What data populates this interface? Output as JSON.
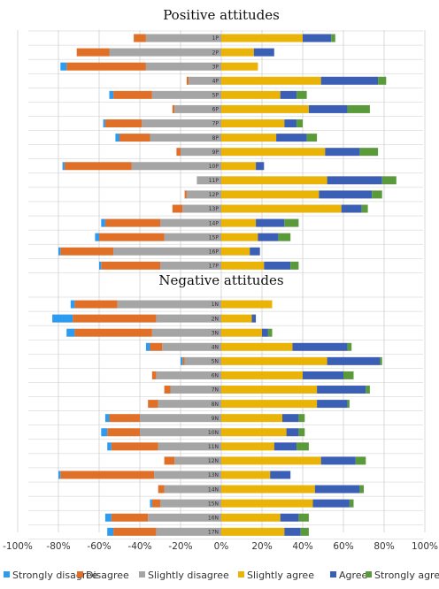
{
  "colors": {
    "strongly_disagree": "#2d9bf0",
    "disagree": "#e07028",
    "slightly_disagree": "#a5a5a5",
    "slightly_agree": "#eab308",
    "agree": "#3b5fb5",
    "strongly_agree": "#5a9a3a",
    "gridline": "#d9d9d9",
    "row_rule": "#cccccc"
  },
  "chart_data": [
    {
      "type": "bar",
      "title": "Positive attitudes",
      "orientation": "horizontal",
      "stacking": "diverging",
      "xlim": [
        -100,
        100
      ],
      "grid": true,
      "categories": [
        "1P",
        "2P",
        "3P",
        "4P",
        "5P",
        "6P",
        "7P",
        "8P",
        "9P",
        "10P",
        "11P",
        "12P",
        "13P",
        "14P",
        "15P",
        "16P",
        "17P"
      ],
      "series": [
        {
          "name": "Strongly disagree",
          "values": [
            0,
            0,
            -3,
            0,
            -2,
            0,
            -1,
            -2,
            0,
            -1,
            0,
            0,
            0,
            -2,
            -2,
            -1,
            -1
          ]
        },
        {
          "name": "Disagree",
          "values": [
            -6,
            -16,
            -39,
            -1,
            -19,
            -1,
            -18,
            -15,
            -2,
            -33,
            0,
            -1,
            -5,
            -27,
            -32,
            -26,
            -29
          ]
        },
        {
          "name": "Slightly disagree",
          "values": [
            -37,
            -55,
            -37,
            -16,
            -34,
            -23,
            -39,
            -35,
            -20,
            -44,
            -12,
            -17,
            -19,
            -30,
            -28,
            -53,
            -30
          ]
        },
        {
          "name": "Slightly agree",
          "values": [
            40,
            16,
            18,
            49,
            29,
            43,
            31,
            27,
            51,
            17,
            52,
            48,
            59,
            17,
            18,
            14,
            21
          ]
        },
        {
          "name": "Agree",
          "values": [
            14,
            10,
            0,
            28,
            8,
            19,
            6,
            15,
            17,
            4,
            27,
            26,
            10,
            14,
            10,
            5,
            13
          ]
        },
        {
          "name": "Strongly agree",
          "values": [
            2,
            0,
            0,
            4,
            5,
            11,
            3,
            5,
            9,
            0,
            7,
            5,
            3,
            7,
            6,
            0,
            4
          ]
        }
      ]
    },
    {
      "type": "bar",
      "title": "Negative attitudes",
      "orientation": "horizontal",
      "stacking": "diverging",
      "xlim": [
        -100,
        100
      ],
      "grid": true,
      "xticks": [
        "-100%",
        "-80%",
        "-60%",
        "-40%",
        "-20%",
        "0%",
        "20%",
        "40%",
        "60%",
        "80%",
        "100%"
      ],
      "categories": [
        "1N",
        "2N",
        "3N",
        "4N",
        "5N",
        "6N",
        "7N",
        "8N",
        "9N",
        "10N",
        "11N",
        "12N",
        "13N",
        "14N",
        "15N",
        "16N",
        "17N"
      ],
      "series": [
        {
          "name": "Strongly disagree",
          "values": [
            -2,
            -10,
            -4,
            -2,
            -1,
            0,
            0,
            0,
            -2,
            -3,
            -2,
            0,
            -1,
            0,
            -1,
            -3,
            -3
          ]
        },
        {
          "name": "Disagree",
          "values": [
            -21,
            -41,
            -38,
            -6,
            -1,
            -2,
            -3,
            -5,
            -15,
            -16,
            -23,
            -5,
            -46,
            -3,
            -4,
            -18,
            -21
          ]
        },
        {
          "name": "Slightly disagree",
          "values": [
            -51,
            -32,
            -34,
            -29,
            -18,
            -32,
            -25,
            -31,
            -40,
            -40,
            -31,
            -23,
            -33,
            -28,
            -30,
            -36,
            -32
          ]
        },
        {
          "name": "Slightly agree",
          "values": [
            25,
            15,
            20,
            35,
            52,
            40,
            47,
            47,
            30,
            32,
            26,
            49,
            24,
            46,
            45,
            29,
            31
          ]
        },
        {
          "name": "Agree",
          "values": [
            0,
            2,
            3,
            27,
            26,
            20,
            24,
            15,
            8,
            6,
            11,
            17,
            10,
            22,
            18,
            9,
            8
          ]
        },
        {
          "name": "Strongly agree",
          "values": [
            0,
            0,
            2,
            2,
            1,
            5,
            2,
            1,
            3,
            3,
            6,
            5,
            0,
            2,
            2,
            5,
            4
          ]
        }
      ]
    }
  ],
  "legend": [
    "Strongly disagree",
    "Disagree",
    "Slightly disagree",
    "Slightly agree",
    "Agree",
    "Strongly agree"
  ]
}
